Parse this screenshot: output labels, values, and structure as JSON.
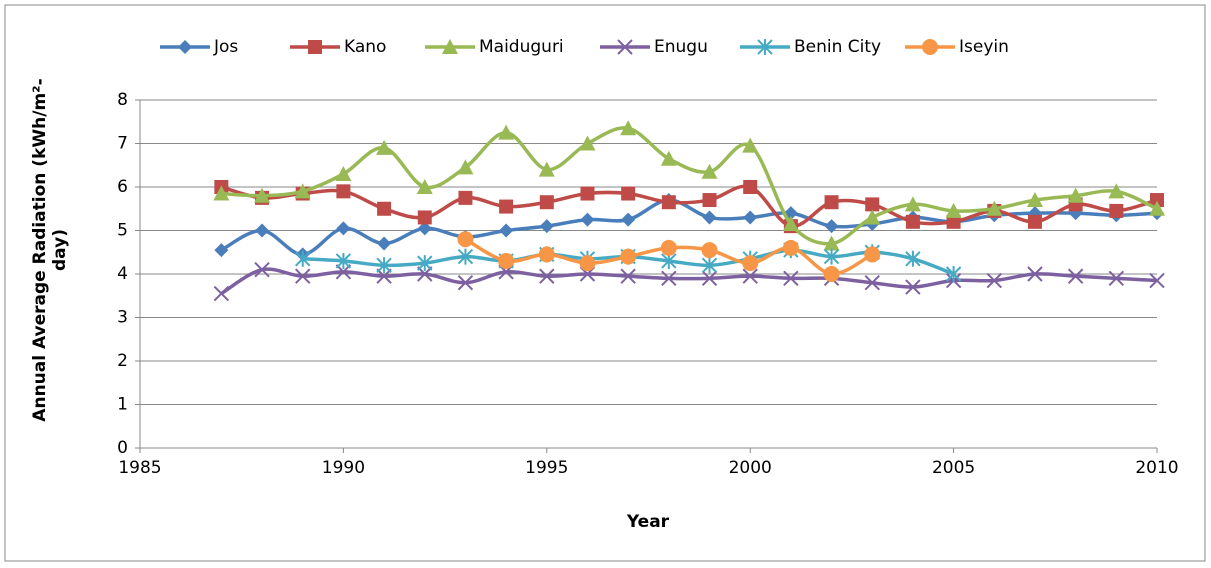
{
  "chart_data": {
    "type": "line",
    "x_label": "Year",
    "y_label": "Annual Average Radiation (kWh/m²-day)",
    "x": [
      1987,
      1988,
      1989,
      1990,
      1991,
      1992,
      1993,
      1994,
      1995,
      1996,
      1997,
      1998,
      1999,
      2000,
      2001,
      2002,
      2003,
      2004,
      2005,
      2006,
      2007,
      2008,
      2009,
      2010
    ],
    "series": [
      {
        "name": "Jos",
        "color": "#4a7ebb",
        "marker": "diamond",
        "values": [
          4.55,
          5.0,
          4.45,
          5.05,
          4.7,
          5.05,
          4.85,
          5.0,
          5.1,
          5.25,
          5.25,
          5.7,
          5.3,
          5.3,
          5.4,
          5.1,
          5.15,
          5.3,
          5.2,
          5.35,
          5.4,
          5.4,
          5.35,
          5.4
        ]
      },
      {
        "name": "Kano",
        "color": "#be4b48",
        "marker": "square",
        "values": [
          6.0,
          5.75,
          5.85,
          5.9,
          5.5,
          5.3,
          5.75,
          5.55,
          5.65,
          5.85,
          5.85,
          5.65,
          5.7,
          6.0,
          5.1,
          5.65,
          5.6,
          5.2,
          5.2,
          5.45,
          5.2,
          5.6,
          5.45,
          5.7
        ]
      },
      {
        "name": "Maiduguri",
        "color": "#98b954",
        "marker": "triangle",
        "values": [
          5.85,
          5.8,
          5.9,
          6.3,
          6.9,
          6.0,
          6.45,
          7.25,
          6.4,
          7.0,
          7.35,
          6.65,
          6.35,
          6.95,
          5.15,
          4.7,
          5.3,
          5.6,
          5.45,
          5.5,
          5.7,
          5.8,
          5.9,
          5.5
        ]
      },
      {
        "name": "Enugu",
        "color": "#7d60a0",
        "marker": "x",
        "values": [
          3.55,
          4.1,
          3.95,
          4.05,
          3.95,
          4.0,
          3.8,
          4.05,
          3.95,
          4.0,
          3.95,
          3.9,
          3.9,
          3.95,
          3.9,
          3.9,
          3.8,
          3.7,
          3.85,
          3.85,
          4.0,
          3.95,
          3.9,
          3.85
        ]
      },
      {
        "name": "Benin City",
        "color": "#46aac5",
        "marker": "star",
        "values": [
          null,
          null,
          4.35,
          4.3,
          4.2,
          4.25,
          4.4,
          4.3,
          4.45,
          4.35,
          4.4,
          4.3,
          4.2,
          4.35,
          4.55,
          4.4,
          4.5,
          4.35,
          4.0,
          null,
          null,
          null,
          null,
          null
        ]
      },
      {
        "name": "Iseyin",
        "color": "#f79646",
        "marker": "circle",
        "values": [
          null,
          null,
          null,
          null,
          null,
          null,
          4.8,
          4.3,
          4.45,
          4.25,
          4.4,
          4.6,
          4.55,
          4.25,
          4.6,
          4.0,
          4.45,
          null,
          null,
          null,
          null,
          null,
          null,
          null
        ]
      }
    ],
    "xlim": [
      1985,
      2010
    ],
    "xticks": [
      1985,
      1990,
      1995,
      2000,
      2005,
      2010
    ],
    "ylim": [
      0,
      8
    ],
    "yticks": [
      0,
      1,
      2,
      3,
      4,
      5,
      6,
      7,
      8
    ],
    "grid": true,
    "legend": "top",
    "smooth": true
  }
}
